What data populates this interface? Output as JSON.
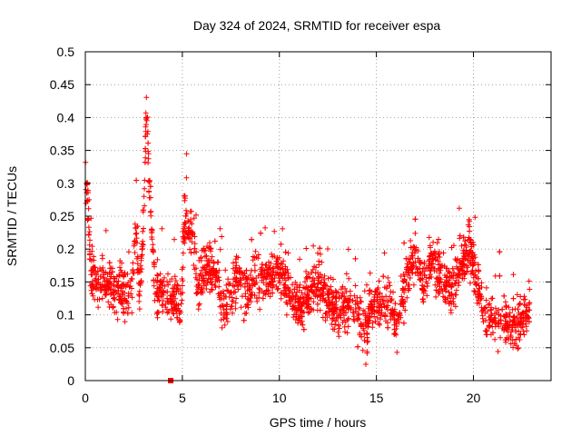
{
  "chart_data": {
    "type": "scatter",
    "title": "Day 324 of 2024, SRMTID for receiver espa",
    "xlabel": "GPS time / hours",
    "ylabel": "SRMTID / TECUs",
    "xlim": [
      0,
      24
    ],
    "ylim": [
      0,
      0.5
    ],
    "x_ticks": [
      0,
      5,
      10,
      15,
      20
    ],
    "x_tick_labels": [
      "0",
      "5",
      "10",
      "15",
      "20"
    ],
    "y_ticks": [
      0,
      0.05,
      0.1,
      0.15,
      0.2,
      0.25,
      0.3,
      0.35,
      0.4,
      0.45,
      0.5
    ],
    "y_tick_labels": [
      "0",
      "0.05",
      "0.1",
      "0.15",
      "0.2",
      "0.25",
      "0.3",
      "0.35",
      "0.4",
      "0.45",
      "0.5"
    ],
    "grid": true,
    "marker": "plus",
    "color": "#ff0000",
    "special_marker": {
      "x": 4.4,
      "y": 0.0,
      "shape": "square"
    },
    "x_range": [
      0,
      22.9
    ],
    "trend": [
      [
        0.0,
        0.32
      ],
      [
        0.15,
        0.26
      ],
      [
        0.3,
        0.16
      ],
      [
        0.6,
        0.15
      ],
      [
        1.0,
        0.15
      ],
      [
        1.5,
        0.14
      ],
      [
        2.0,
        0.13
      ],
      [
        2.4,
        0.15
      ],
      [
        2.6,
        0.22
      ],
      [
        2.8,
        0.13
      ],
      [
        3.0,
        0.25
      ],
      [
        3.15,
        0.42
      ],
      [
        3.3,
        0.29
      ],
      [
        3.6,
        0.14
      ],
      [
        4.0,
        0.13
      ],
      [
        4.6,
        0.13
      ],
      [
        4.9,
        0.1
      ],
      [
        5.1,
        0.24
      ],
      [
        5.5,
        0.23
      ],
      [
        5.8,
        0.14
      ],
      [
        6.3,
        0.18
      ],
      [
        6.8,
        0.15
      ],
      [
        7.2,
        0.11
      ],
      [
        7.8,
        0.15
      ],
      [
        8.4,
        0.14
      ],
      [
        9.0,
        0.15
      ],
      [
        9.5,
        0.16
      ],
      [
        10.0,
        0.17
      ],
      [
        10.4,
        0.14
      ],
      [
        11.0,
        0.11
      ],
      [
        11.5,
        0.13
      ],
      [
        12.0,
        0.15
      ],
      [
        12.5,
        0.12
      ],
      [
        13.0,
        0.11
      ],
      [
        13.5,
        0.12
      ],
      [
        14.0,
        0.11
      ],
      [
        14.5,
        0.07
      ],
      [
        14.7,
        0.12
      ],
      [
        15.2,
        0.12
      ],
      [
        15.7,
        0.11
      ],
      [
        16.1,
        0.08
      ],
      [
        16.5,
        0.15
      ],
      [
        17.0,
        0.19
      ],
      [
        17.4,
        0.14
      ],
      [
        17.8,
        0.19
      ],
      [
        18.3,
        0.16
      ],
      [
        18.8,
        0.13
      ],
      [
        19.3,
        0.17
      ],
      [
        19.8,
        0.2
      ],
      [
        20.2,
        0.15
      ],
      [
        20.6,
        0.1
      ],
      [
        21.2,
        0.09
      ],
      [
        21.8,
        0.09
      ],
      [
        22.3,
        0.08
      ],
      [
        22.9,
        0.11
      ]
    ],
    "spread": 0.035,
    "n_points": 2600
  }
}
